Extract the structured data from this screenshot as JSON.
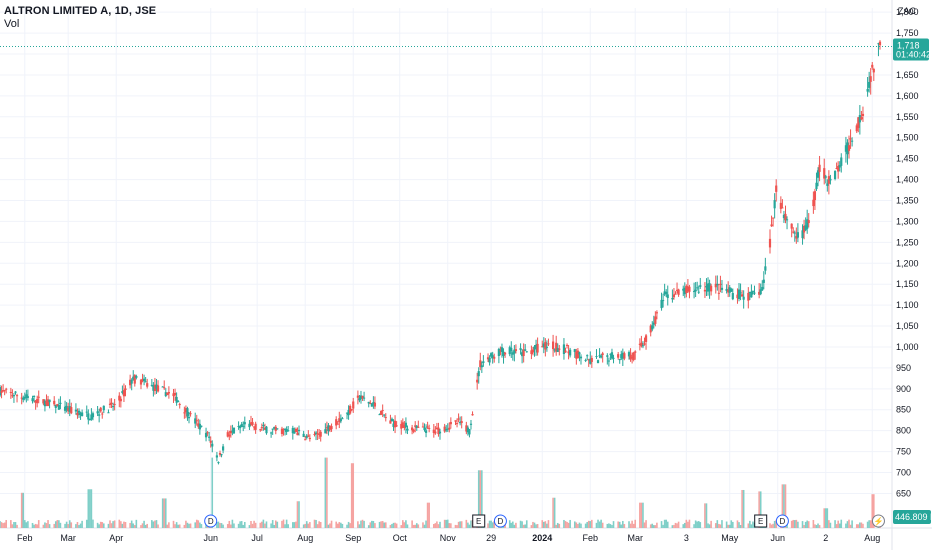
{
  "header": {
    "symbol_title": "ALTRON LIMITED A, 1D, JSE",
    "volume_label": "Vol"
  },
  "price_axis": {
    "currency": "ZAC",
    "ticks": [
      "1,800",
      "1,750",
      "1,700",
      "1,650",
      "1,600",
      "1,550",
      "1,500",
      "1,450",
      "1,400",
      "1,350",
      "1,300",
      "1,250",
      "1,200",
      "1,150",
      "1,100",
      "1,050",
      "1,000",
      "950",
      "900",
      "850",
      "800",
      "750",
      "700",
      "650"
    ],
    "last_price_label": "1,718",
    "countdown_label": "01:40:42",
    "volume_tag": "446.809 K"
  },
  "time_axis": {
    "labels": [
      "Feb",
      "Mar",
      "Apr",
      "Jun",
      "Jul",
      "Aug",
      "Sep",
      "Oct",
      "Nov",
      "29",
      "2024",
      "Feb",
      "Mar",
      "3",
      "May",
      "Jun",
      "2",
      "Aug"
    ]
  },
  "event_markers": [
    {
      "symbol": "D",
      "kind": "dividend",
      "month": "Jun 2023"
    },
    {
      "symbol": "E",
      "kind": "earnings",
      "month": "Nov 2023"
    },
    {
      "symbol": "D",
      "kind": "dividend",
      "month": "Dec 2023"
    },
    {
      "symbol": "E",
      "kind": "earnings",
      "month": "May 2024"
    },
    {
      "symbol": "D",
      "kind": "dividend",
      "month": "Jun 2024"
    },
    {
      "symbol": "⚡",
      "kind": "flash",
      "month": "Aug 2024"
    }
  ],
  "colors": {
    "up": "#26a69a",
    "down": "#ef5350",
    "up_volume": "#7fcfc8",
    "down_volume": "#f5a3a1",
    "grid": "#f0f3fa",
    "last_price_line": "#26a69a"
  },
  "chart_data": {
    "type": "candlestick",
    "title": "ALTRON LIMITED A, 1D, JSE",
    "currency": "ZAC",
    "grid": true,
    "ylim": [
      620,
      1810
    ],
    "last_price": 1718,
    "anchors": [
      [
        "2023-01-16",
        895
      ],
      [
        "2023-02-01",
        880
      ],
      [
        "2023-02-15",
        868
      ],
      [
        "2023-03-01",
        850
      ],
      [
        "2023-03-15",
        835
      ],
      [
        "2023-04-01",
        862
      ],
      [
        "2023-04-12",
        925
      ],
      [
        "2023-04-25",
        905
      ],
      [
        "2023-05-08",
        885
      ],
      [
        "2023-05-20",
        830
      ],
      [
        "2023-05-31",
        785
      ],
      [
        "2023-06-06",
        730
      ],
      [
        "2023-06-12",
        790
      ],
      [
        "2023-06-25",
        815
      ],
      [
        "2023-07-10",
        800
      ],
      [
        "2023-07-25",
        800
      ],
      [
        "2023-08-05",
        780
      ],
      [
        "2023-08-15",
        805
      ],
      [
        "2023-08-28",
        840
      ],
      [
        "2023-09-05",
        880
      ],
      [
        "2023-09-15",
        860
      ],
      [
        "2023-09-25",
        820
      ],
      [
        "2023-10-10",
        805
      ],
      [
        "2023-10-25",
        800
      ],
      [
        "2023-11-08",
        820
      ],
      [
        "2023-11-15",
        800
      ],
      [
        "2023-11-22",
        960
      ],
      [
        "2023-12-05",
        990
      ],
      [
        "2023-12-20",
        985
      ],
      [
        "2024-01-05",
        1005
      ],
      [
        "2024-01-20",
        990
      ],
      [
        "2024-02-01",
        965
      ],
      [
        "2024-02-15",
        980
      ],
      [
        "2024-03-01",
        980
      ],
      [
        "2024-03-10",
        1030
      ],
      [
        "2024-03-20",
        1120
      ],
      [
        "2024-04-05",
        1135
      ],
      [
        "2024-04-20",
        1145
      ],
      [
        "2024-05-05",
        1125
      ],
      [
        "2024-05-15",
        1120
      ],
      [
        "2024-05-22",
        1140
      ],
      [
        "2024-05-27",
        1250
      ],
      [
        "2024-05-31",
        1380
      ],
      [
        "2024-06-06",
        1310
      ],
      [
        "2024-06-14",
        1260
      ],
      [
        "2024-06-22",
        1300
      ],
      [
        "2024-06-28",
        1430
      ],
      [
        "2024-07-05",
        1390
      ],
      [
        "2024-07-12",
        1440
      ],
      [
        "2024-07-20",
        1510
      ],
      [
        "2024-07-26",
        1570
      ],
      [
        "2024-07-31",
        1650
      ],
      [
        "2024-08-06",
        1718
      ]
    ],
    "x_range": [
      "2023-01-16",
      "2024-08-06"
    ],
    "volume_max_k": 1250,
    "last_volume_k": 446.809,
    "volume_spikes": [
      [
        "2023-01-30",
        500
      ],
      [
        "2023-03-15",
        550
      ],
      [
        "2023-05-02",
        420
      ],
      [
        "2023-06-03",
        1000
      ],
      [
        "2023-07-28",
        380
      ],
      [
        "2023-08-14",
        1000
      ],
      [
        "2023-09-01",
        920
      ],
      [
        "2023-10-20",
        360
      ],
      [
        "2023-11-22",
        820
      ],
      [
        "2024-01-08",
        430
      ],
      [
        "2024-03-05",
        360
      ],
      [
        "2024-04-15",
        350
      ],
      [
        "2024-05-10",
        540
      ],
      [
        "2024-05-20",
        520
      ],
      [
        "2024-06-05",
        620
      ],
      [
        "2024-07-02",
        280
      ],
      [
        "2024-08-02",
        480
      ]
    ]
  }
}
